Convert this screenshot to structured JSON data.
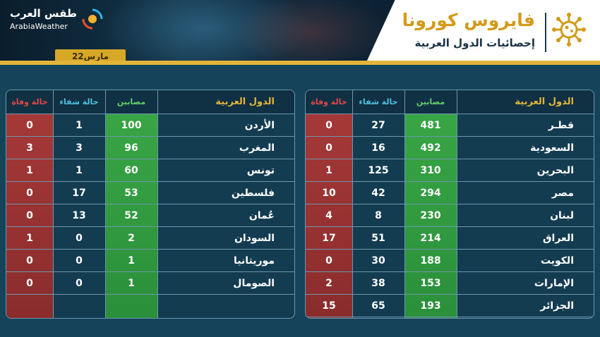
{
  "header": {
    "logo_ar": "طقس العرب",
    "logo_en": "ArabiaWeather",
    "date": "22مارس",
    "title": "فايروس كورونا",
    "subtitle": "إحصائيات الدول العربية"
  },
  "columns": {
    "country": "الدول العربية",
    "infected": "مصابين",
    "recovered": "حالة شفاء",
    "deaths": "حالة وفاة"
  },
  "colors": {
    "gold": "#e2b53a",
    "infected": "#3aa846",
    "deaths": "#a83a39",
    "background": "#15435a"
  },
  "left_table": [
    {
      "country": "الأردن",
      "infected": "100",
      "recovered": "1",
      "deaths": "0"
    },
    {
      "country": "المغرب",
      "infected": "96",
      "recovered": "3",
      "deaths": "3"
    },
    {
      "country": "تونس",
      "infected": "60",
      "recovered": "1",
      "deaths": "1"
    },
    {
      "country": "فلسطين",
      "infected": "53",
      "recovered": "17",
      "deaths": "0"
    },
    {
      "country": "عُمان",
      "infected": "52",
      "recovered": "13",
      "deaths": "0"
    },
    {
      "country": "السودان",
      "infected": "2",
      "recovered": "0",
      "deaths": "1"
    },
    {
      "country": "موريتانيا",
      "infected": "1",
      "recovered": "0",
      "deaths": "0"
    },
    {
      "country": "الصومال",
      "infected": "1",
      "recovered": "0",
      "deaths": "0"
    }
  ],
  "right_table": [
    {
      "country": "قطـر",
      "infected": "481",
      "recovered": "27",
      "deaths": "0"
    },
    {
      "country": "السعودية",
      "infected": "492",
      "recovered": "16",
      "deaths": "0"
    },
    {
      "country": "البحرين",
      "infected": "310",
      "recovered": "125",
      "deaths": "1"
    },
    {
      "country": "مصر",
      "infected": "294",
      "recovered": "42",
      "deaths": "10"
    },
    {
      "country": "لبنان",
      "infected": "230",
      "recovered": "8",
      "deaths": "4"
    },
    {
      "country": "العراق",
      "infected": "214",
      "recovered": "51",
      "deaths": "17"
    },
    {
      "country": "الكويت",
      "infected": "188",
      "recovered": "30",
      "deaths": "0"
    },
    {
      "country": "الإمارات",
      "infected": "153",
      "recovered": "38",
      "deaths": "2"
    },
    {
      "country": "الجزائر",
      "infected": "193",
      "recovered": "65",
      "deaths": "15"
    }
  ]
}
